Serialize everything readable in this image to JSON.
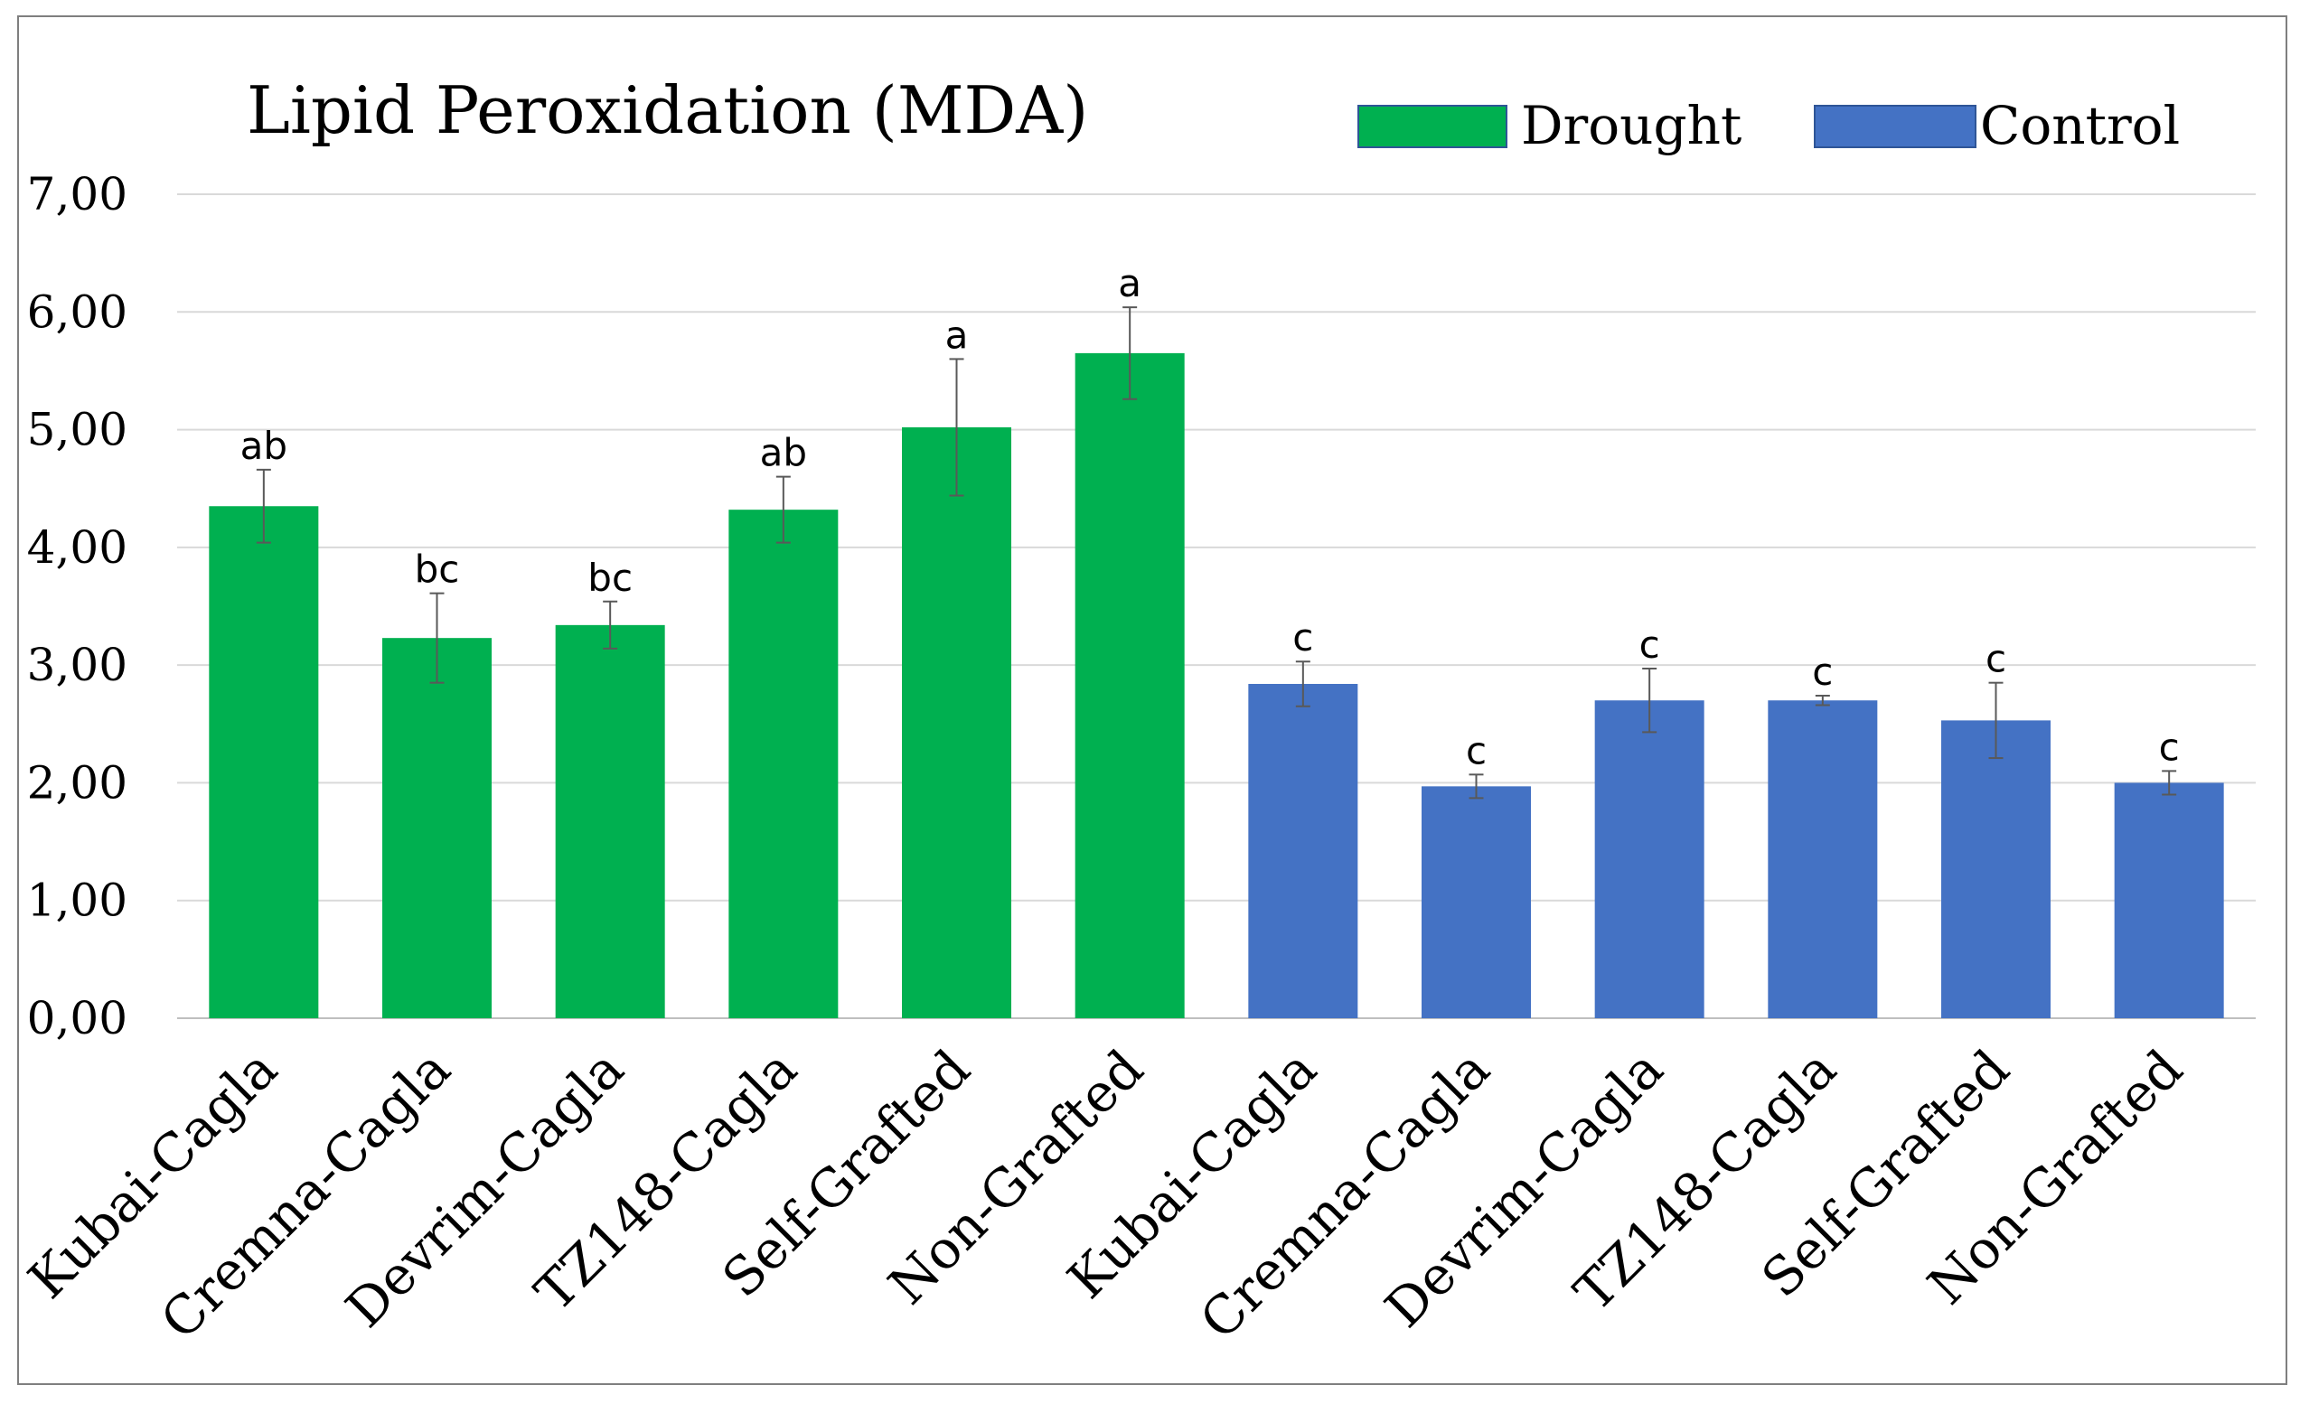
{
  "chart_data": {
    "type": "bar",
    "title": "Lipid Peroxidation (MDA)",
    "xlabel": "",
    "ylabel": "",
    "ylim": [
      0,
      7
    ],
    "yticks": [
      "0,00",
      "1,00",
      "2,00",
      "3,00",
      "4,00",
      "5,00",
      "6,00",
      "7,00"
    ],
    "grid": true,
    "legend_position": "top-right",
    "legend": [
      {
        "label": "Drought",
        "color": "#00b050"
      },
      {
        "label": "Control",
        "color": "#4472c4"
      }
    ],
    "categories": [
      "Kubai-Cagla",
      "Cremna-Cagla",
      "Devrim-Cagla",
      "TZ148-Cagla",
      "Self-Grafted",
      "Non-Grafted",
      "Kubai-Cagla",
      "Cremna-Cagla",
      "Devrim-Cagla",
      "TZ148-Cagla",
      "Self-Grafted",
      "Non-Grafted"
    ],
    "values": [
      4.35,
      3.23,
      3.34,
      4.32,
      5.02,
      5.65,
      2.84,
      1.97,
      2.7,
      2.7,
      2.53,
      2.0
    ],
    "errors": [
      0.31,
      0.38,
      0.2,
      0.28,
      0.58,
      0.39,
      0.19,
      0.1,
      0.27,
      0.04,
      0.32,
      0.1
    ],
    "series_index": [
      0,
      0,
      0,
      0,
      0,
      0,
      1,
      1,
      1,
      1,
      1,
      1
    ],
    "significance_labels": [
      "ab",
      "bc",
      "bc",
      "ab",
      "a",
      "a",
      "c",
      "c",
      "c",
      "c",
      "c",
      "c"
    ]
  }
}
